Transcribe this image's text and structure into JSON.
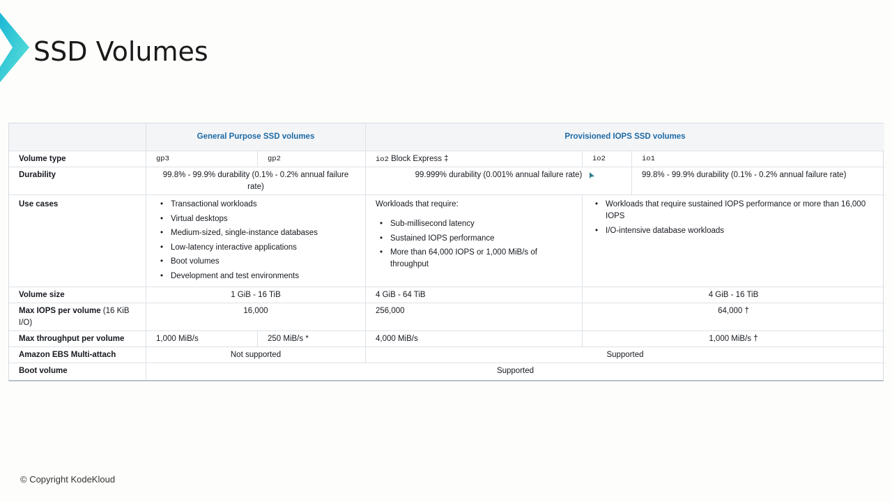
{
  "title": "SSD Volumes",
  "footer": "© Copyright KodeKloud",
  "header": {
    "general": "General Purpose SSD volumes",
    "provisioned": "Provisioned IOPS SSD volumes"
  },
  "rows": {
    "volume_type": {
      "label": "Volume type",
      "gp3": "gp3",
      "gp2": "gp2",
      "io2be": "io2",
      "io2be_suffix": " Block Express ‡",
      "io2": "io2",
      "io1": "io1"
    },
    "durability": {
      "label": "Durability",
      "general": "99.8% - 99.9% durability (0.1% - 0.2% annual failure rate)",
      "io2": "99.999% durability (0.001% annual failure rate)",
      "io1": "99.8% - 99.9% durability (0.1% - 0.2% annual failure rate)"
    },
    "use_cases": {
      "label": "Use cases",
      "general": [
        "Transactional workloads",
        "Virtual desktops",
        "Medium-sized, single-instance databases",
        "Low-latency interactive applications",
        "Boot volumes",
        "Development and test environments"
      ],
      "io2be_intro": "Workloads that require:",
      "io2be": [
        "Sub-millisecond latency",
        "Sustained IOPS performance",
        "More than 64,000 IOPS or 1,000 MiB/s of throughput"
      ],
      "io2io1": [
        "Workloads that require sustained IOPS performance or more than 16,000 IOPS",
        "I/O-intensive database workloads"
      ]
    },
    "volume_size": {
      "label": "Volume size",
      "general": "1 GiB - 16 TiB",
      "io2be": "4 GiB - 64 TiB",
      "io2io1": "4 GiB - 16 TiB"
    },
    "max_iops": {
      "label": "Max IOPS per volume",
      "label_suffix": " (16 KiB I/O)",
      "general": "16,000",
      "io2be": "256,000",
      "io2io1": "64,000 †"
    },
    "max_throughput": {
      "label": "Max throughput per volume",
      "gp3": "1,000 MiB/s",
      "gp2": "250 MiB/s *",
      "io2be": "4,000 MiB/s",
      "io2io1": "1,000 MiB/s †"
    },
    "multi_attach": {
      "label": "Amazon EBS Multi-attach",
      "general": "Not supported",
      "provisioned": "Supported"
    },
    "boot": {
      "label": "Boot volume",
      "all": "Supported"
    }
  },
  "colors": {
    "accent": "#1d6aa5",
    "logo": "#2ec9d9"
  }
}
